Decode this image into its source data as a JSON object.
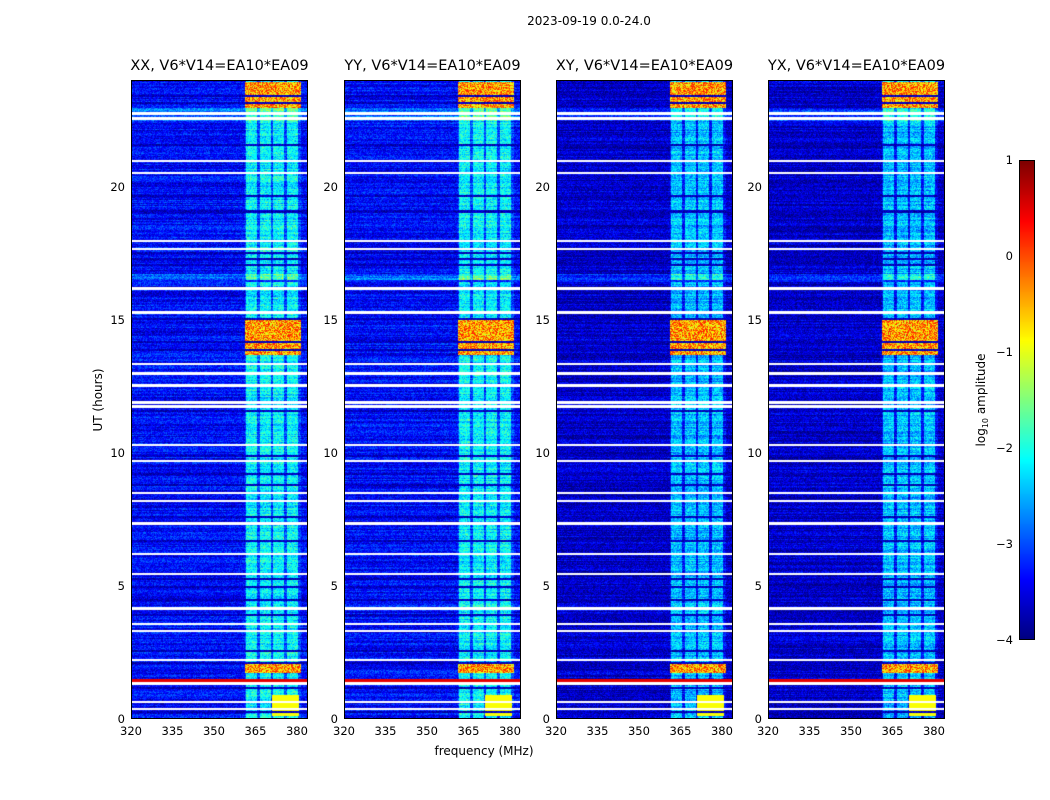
{
  "chart_data": {
    "type": "heatmap",
    "title": "2023-09-19 0.0-24.0",
    "xlabel": "frequency (MHz)",
    "ylabel": "UT (hours)",
    "xlim": [
      320,
      384
    ],
    "ylim": [
      0,
      24
    ],
    "xticks": [
      "320",
      "335",
      "350",
      "365",
      "380"
    ],
    "xtick_values": [
      320,
      335,
      350,
      365,
      380
    ],
    "yticks": [
      "0",
      "5",
      "10",
      "15",
      "20"
    ],
    "ytick_values": [
      0,
      5,
      10,
      15,
      20
    ],
    "panels": [
      {
        "title": "XX, V6*V14=EA10*EA09"
      },
      {
        "title": "YY, V6*V14=EA10*EA09"
      },
      {
        "title": "XY, V6*V14=EA10*EA09"
      },
      {
        "title": "YX, V6*V14=EA10*EA09"
      }
    ],
    "colorbar": {
      "label_main": "log",
      "label_sub": "10",
      "label_rest": " amplitude",
      "colormap": "jet",
      "range": [
        -4,
        1
      ],
      "ticks": [
        "1",
        "0",
        "−1",
        "−2",
        "−3",
        "−4"
      ],
      "tick_values": [
        1,
        0,
        -1,
        -2,
        -3,
        -4
      ]
    },
    "band": {
      "rfi_band_mhz": [
        361,
        384
      ],
      "subband_edges_mhz": [
        361,
        366,
        371,
        376,
        381
      ]
    },
    "flagged_hours_white": [
      0.35,
      0.62,
      1.32,
      2.2,
      3.3,
      3.55,
      4.15,
      5.45,
      6.2,
      7.35,
      8.2,
      8.5,
      9.7,
      10.3,
      11.75,
      11.9,
      12.55,
      13.0,
      13.35,
      15.3,
      16.2,
      17.7,
      18.0,
      20.55,
      21.0,
      22.6,
      22.8
    ],
    "flagged_hours_black": [
      0.25,
      1.15,
      2.1,
      2.55,
      3.9,
      4.45,
      4.95,
      5.25,
      6.7,
      7.6,
      8.8,
      9.2,
      9.9,
      11.6,
      13.9,
      14.2,
      15.05,
      16.5,
      17.1,
      17.3,
      17.55,
      19.7,
      19.1,
      21.6,
      23.2,
      23.45
    ]
  }
}
